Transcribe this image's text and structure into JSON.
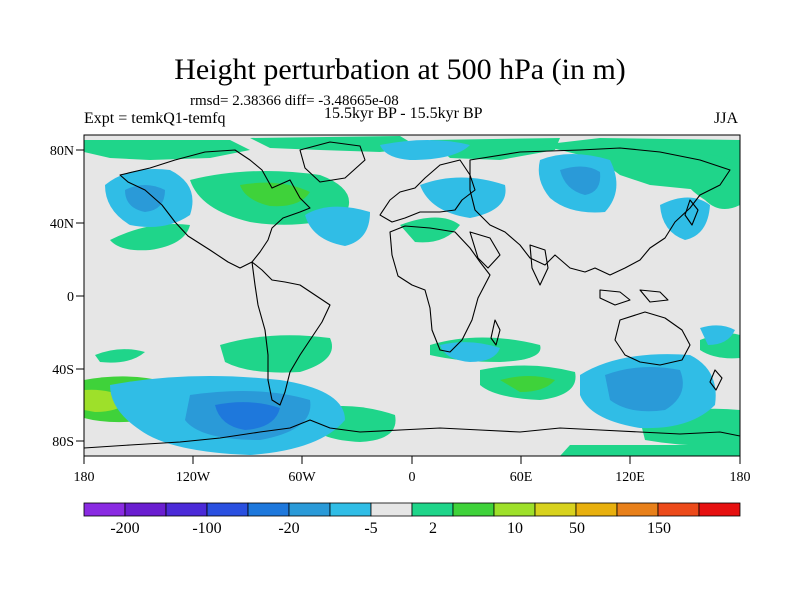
{
  "header": {
    "title": "Height perturbation at 500 hPa (in m)",
    "stats": "rmsd= 2.38366 diff= -3.48665e-08",
    "experiment": "Expt = temkQ1-temfq",
    "period": "15.5kyr BP - 15.5kyr BP",
    "season": "JJA"
  },
  "map": {
    "x_ticks": [
      "180",
      "120W",
      "60W",
      "0",
      "60E",
      "120E",
      "180"
    ],
    "y_ticks": [
      "80N",
      "40N",
      "0",
      "40S",
      "80S"
    ],
    "background_color": "#e6e6e6"
  },
  "colorbar": {
    "colors": [
      "#8a2be2",
      "#6a1ed0",
      "#4b2ad8",
      "#2a50e0",
      "#1e78dc",
      "#2a9ad8",
      "#30bde6",
      "#e6e6e6",
      "#1fd58a",
      "#3fd23a",
      "#9ee02a",
      "#d8d21e",
      "#e8b00e",
      "#e8801a",
      "#ec4a1a",
      "#e61010"
    ],
    "labels": [
      "-200",
      "-100",
      "-20",
      "-5",
      "2",
      "10",
      "50",
      "150"
    ]
  }
}
